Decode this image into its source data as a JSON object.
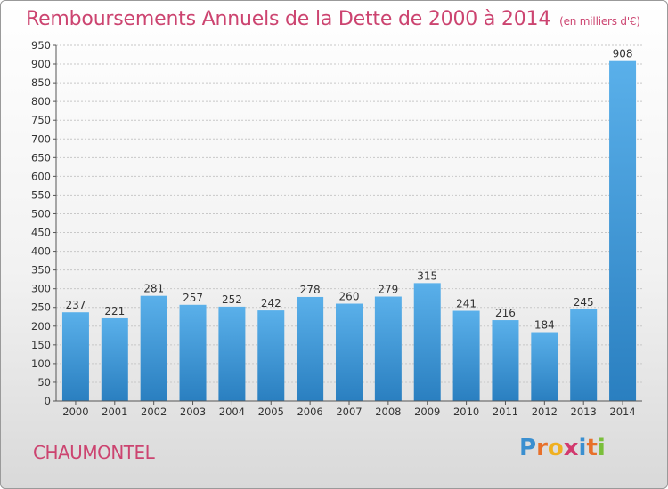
{
  "header": {
    "title": "Remboursements Annuels de la Dette de 2000 à 2014",
    "subtitle": "(en milliers d'€)"
  },
  "footer": {
    "commune": "CHAUMONTEL",
    "logo_letters": [
      "P",
      "r",
      "o",
      "x",
      "i",
      "t",
      "i"
    ]
  },
  "colors": {
    "title": "#cc4470",
    "bar_top": "#5ab0ea",
    "bar_bottom": "#2a7fc0",
    "logo": [
      "#3a8fd0",
      "#e8702a",
      "#f0b020",
      "#d23a6e",
      "#3a8fd0",
      "#e8702a",
      "#7abf3a"
    ]
  },
  "chart_data": {
    "type": "bar",
    "categories": [
      "2000",
      "2001",
      "2002",
      "2003",
      "2004",
      "2005",
      "2006",
      "2007",
      "2008",
      "2009",
      "2010",
      "2011",
      "2012",
      "2013",
      "2014"
    ],
    "values": [
      237,
      221,
      281,
      257,
      252,
      242,
      278,
      260,
      279,
      315,
      241,
      216,
      184,
      245,
      908
    ],
    "ylim": [
      0,
      950
    ],
    "ytick_step": 50,
    "grid": true
  }
}
